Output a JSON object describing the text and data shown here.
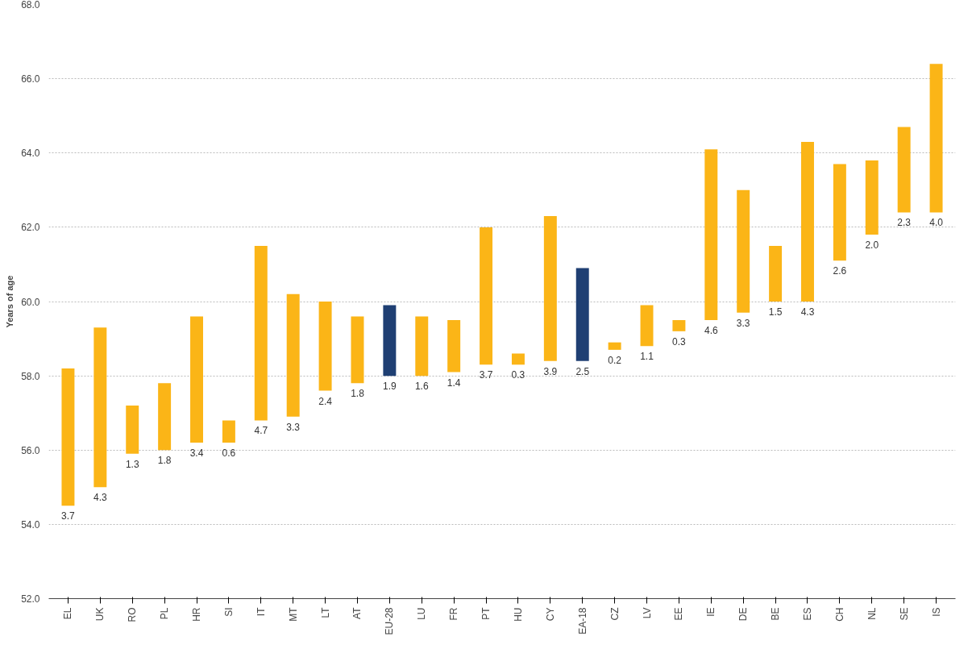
{
  "chart_data": {
    "type": "bar",
    "ylabel": "Years of age",
    "categories": [
      "EL",
      "UK",
      "RO",
      "PL",
      "HR",
      "SI",
      "IT",
      "MT",
      "LT",
      "AT",
      "EU-28",
      "LU",
      "FR",
      "PT",
      "HU",
      "CY",
      "EA-18",
      "CZ",
      "LV",
      "EE",
      "IE",
      "DE",
      "BE",
      "ES",
      "CH",
      "NL",
      "SE",
      "IS"
    ],
    "values": [
      3.7,
      4.3,
      1.3,
      1.8,
      3.4,
      0.6,
      4.7,
      3.3,
      2.4,
      1.8,
      1.9,
      1.6,
      1.4,
      3.7,
      0.3,
      3.9,
      2.5,
      0.2,
      1.1,
      0.3,
      4.6,
      3.3,
      1.5,
      4.3,
      2.6,
      2.0,
      2.3,
      4.0
    ],
    "base": [
      54.5,
      55.0,
      55.9,
      56.0,
      56.2,
      56.2,
      56.8,
      56.9,
      57.6,
      57.8,
      58.0,
      58.0,
      58.1,
      58.3,
      58.3,
      58.4,
      58.4,
      58.7,
      58.8,
      59.2,
      59.5,
      59.7,
      60.0,
      60.0,
      61.1,
      61.8,
      62.4,
      62.4
    ],
    "colors": [
      "#fbb517",
      "#fbb517",
      "#fbb517",
      "#fbb517",
      "#fbb517",
      "#fbb517",
      "#fbb517",
      "#fbb517",
      "#fbb517",
      "#fbb517",
      "#1f3f73",
      "#fbb517",
      "#fbb517",
      "#fbb517",
      "#fbb517",
      "#fbb517",
      "#1f3f73",
      "#fbb517",
      "#fbb517",
      "#fbb517",
      "#fbb517",
      "#fbb517",
      "#fbb517",
      "#fbb517",
      "#fbb517",
      "#fbb517",
      "#fbb517",
      "#fbb517"
    ],
    "value_labels": [
      "3.7",
      "4.3",
      "1.3",
      "1.8",
      "3.4",
      "0.6",
      "4.7",
      "3.3",
      "2.4",
      "1.8",
      "1.9",
      "1.6",
      "1.4",
      "3.7",
      "0.3",
      "3.9",
      "2.5",
      "0.2",
      "1.1",
      "0.3",
      "4.6",
      "3.3",
      "1.5",
      "4.3",
      "2.6",
      "2.0",
      "2.3",
      "4.0"
    ],
    "ylim": [
      52,
      68
    ],
    "yticks": [
      {
        "value": 52,
        "label": "52.0"
      },
      {
        "value": 54,
        "label": "54.0"
      },
      {
        "value": 56,
        "label": "56.0"
      },
      {
        "value": 58,
        "label": "58.0"
      },
      {
        "value": 60,
        "label": "60.0"
      },
      {
        "value": 62,
        "label": "62.0"
      },
      {
        "value": 64,
        "label": "64.0"
      },
      {
        "value": 66,
        "label": "66.0"
      },
      {
        "value": 68,
        "label": "68.0"
      }
    ],
    "grid": "y"
  }
}
